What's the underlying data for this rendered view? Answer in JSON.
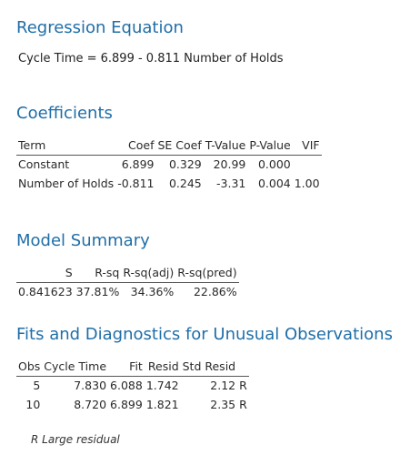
{
  "regression": {
    "title": "Regression Equation",
    "equation": "Cycle Time = 6.899 - 0.811 Number of Holds"
  },
  "coefficients": {
    "title": "Coefficients",
    "headers": [
      "Term",
      "Coef",
      "SE Coef",
      "T-Value",
      "P-Value",
      "VIF"
    ],
    "rows": [
      [
        "Constant",
        "6.899",
        "0.329",
        "20.99",
        "0.000",
        ""
      ],
      [
        "Number of Holds",
        "-0.811",
        "0.245",
        "-3.31",
        "0.004",
        "1.00"
      ]
    ]
  },
  "model_summary": {
    "title": "Model Summary",
    "headers": [
      "S",
      "R-sq",
      "R-sq(adj)",
      "R-sq(pred)"
    ],
    "rows": [
      [
        "0.841623",
        "37.81%",
        "34.36%",
        "22.86%"
      ]
    ]
  },
  "unusual": {
    "title": "Fits and Diagnostics for Unusual Observations",
    "headers": [
      "Obs",
      "Cycle Time",
      "Fit",
      "Resid",
      "Std Resid",
      ""
    ],
    "rows": [
      [
        "5",
        "7.830",
        "6.088",
        "1.742",
        "2.12",
        "R"
      ],
      [
        "10",
        "8.720",
        "6.899",
        "1.821",
        "2.35",
        "R"
      ]
    ],
    "footnote": "R  Large residual"
  }
}
